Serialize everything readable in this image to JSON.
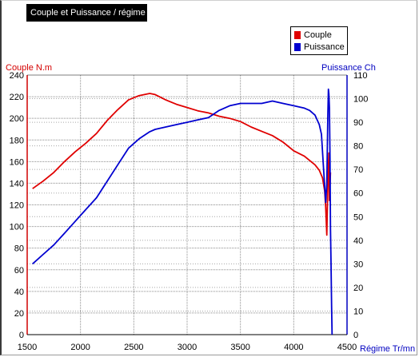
{
  "chart": {
    "title": "Couple et Puissance / régime"
  },
  "legend": {
    "items": [
      {
        "label": "Couple",
        "color": "#e00000"
      },
      {
        "label": "Puissance",
        "color": "#0000d0"
      }
    ]
  },
  "axes": {
    "left_label": "Couple N.m",
    "right_label": "Puissance Ch",
    "x_label": "Régime Tr/mn"
  },
  "chart_data": {
    "type": "line",
    "title": "Couple et Puissance / régime",
    "xlabel": "Régime Tr/mn",
    "ylabel": "Couple N.m",
    "y2label": "Puissance Ch",
    "xlim": [
      1500,
      4500
    ],
    "ylim": [
      0,
      240
    ],
    "y2lim": [
      0,
      110
    ],
    "x_ticks": [
      1500,
      2000,
      2500,
      3000,
      3500,
      4000,
      4500
    ],
    "y_ticks": [
      0,
      20,
      40,
      60,
      80,
      100,
      120,
      140,
      160,
      180,
      200,
      220,
      240
    ],
    "y2_ticks": [
      0,
      10,
      20,
      30,
      40,
      50,
      60,
      70,
      80,
      90,
      100,
      110
    ],
    "grid": true,
    "legend_position": "top-right",
    "series": [
      {
        "name": "Couple",
        "axis": "left",
        "color": "#e00000",
        "points": [
          [
            1550,
            135
          ],
          [
            1650,
            142
          ],
          [
            1750,
            150
          ],
          [
            1850,
            160
          ],
          [
            1950,
            169
          ],
          [
            2050,
            177
          ],
          [
            2150,
            186
          ],
          [
            2250,
            198
          ],
          [
            2350,
            208
          ],
          [
            2450,
            217
          ],
          [
            2550,
            221
          ],
          [
            2650,
            223
          ],
          [
            2700,
            222
          ],
          [
            2800,
            217
          ],
          [
            2900,
            213
          ],
          [
            3000,
            210
          ],
          [
            3100,
            207
          ],
          [
            3200,
            205
          ],
          [
            3300,
            202
          ],
          [
            3400,
            200
          ],
          [
            3500,
            197
          ],
          [
            3600,
            192
          ],
          [
            3700,
            188
          ],
          [
            3800,
            184
          ],
          [
            3900,
            178
          ],
          [
            4000,
            170
          ],
          [
            4100,
            165
          ],
          [
            4200,
            157
          ],
          [
            4240,
            152
          ],
          [
            4270,
            145
          ],
          [
            4290,
            133
          ],
          [
            4300,
            118
          ],
          [
            4310,
            92
          ],
          [
            4320,
            140
          ],
          [
            4330,
            168
          ],
          [
            4335,
            124
          ],
          [
            4345,
            150
          ]
        ]
      },
      {
        "name": "Puissance",
        "axis": "right",
        "color": "#0000d0",
        "points": [
          [
            1550,
            30
          ],
          [
            1650,
            34
          ],
          [
            1750,
            38
          ],
          [
            1850,
            43
          ],
          [
            1950,
            48
          ],
          [
            2050,
            53
          ],
          [
            2150,
            58
          ],
          [
            2250,
            65
          ],
          [
            2350,
            72
          ],
          [
            2450,
            79
          ],
          [
            2550,
            83
          ],
          [
            2650,
            86
          ],
          [
            2700,
            87
          ],
          [
            2800,
            88
          ],
          [
            2900,
            89
          ],
          [
            3000,
            90
          ],
          [
            3100,
            91
          ],
          [
            3200,
            92
          ],
          [
            3300,
            95
          ],
          [
            3400,
            97
          ],
          [
            3500,
            98
          ],
          [
            3600,
            98
          ],
          [
            3700,
            98
          ],
          [
            3800,
            99
          ],
          [
            3900,
            98
          ],
          [
            4000,
            97
          ],
          [
            4100,
            96
          ],
          [
            4150,
            95
          ],
          [
            4200,
            93
          ],
          [
            4240,
            89
          ],
          [
            4260,
            85
          ],
          [
            4280,
            70
          ],
          [
            4300,
            56
          ],
          [
            4310,
            64
          ],
          [
            4320,
            93
          ],
          [
            4325,
            104
          ],
          [
            4330,
            102
          ],
          [
            4335,
            96
          ],
          [
            4340,
            75
          ],
          [
            4345,
            45
          ],
          [
            4350,
            30
          ],
          [
            4355,
            12
          ],
          [
            4360,
            0
          ]
        ]
      }
    ]
  }
}
